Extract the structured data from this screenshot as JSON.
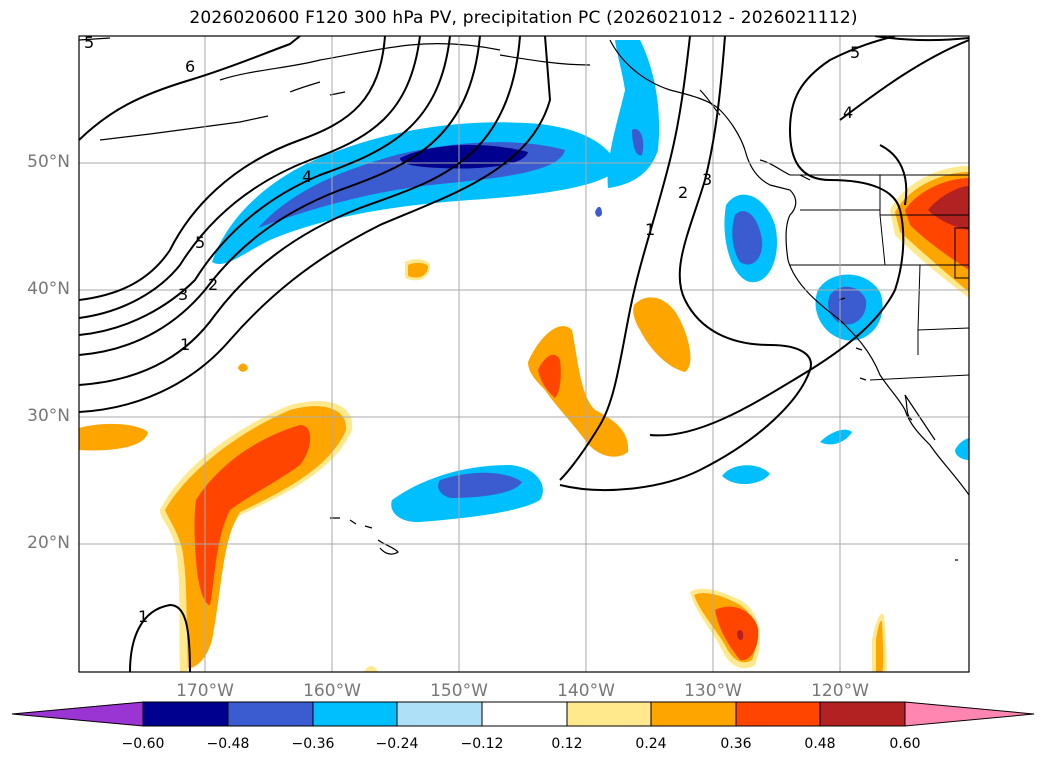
{
  "title": "2026020600 F120 300 hPa PV, precipitation PC (2026021012 - 2026021112)",
  "lat_labels": [
    "50°N",
    "40°N",
    "30°N",
    "20°N"
  ],
  "lon_labels": [
    "170°W",
    "160°W",
    "150°W",
    "140°W",
    "130°W",
    "120°W"
  ],
  "contour_labels": [
    "6",
    "5",
    "4",
    "3",
    "2",
    "1",
    "1",
    "2",
    "3",
    "4",
    "5",
    "5",
    "1"
  ],
  "colorbar": {
    "ticks": [
      "−0.60",
      "−0.48",
      "−0.36",
      "−0.24",
      "−0.12",
      "0.12",
      "0.24",
      "0.36",
      "0.48",
      "0.60"
    ],
    "colors": [
      "#9a34d2",
      "#00008e",
      "#3a5cd0",
      "#00bfff",
      "#aee0f8",
      "#ffffff",
      "#ffe98c",
      "#ffa500",
      "#ff4500",
      "#b22222",
      "#ff86b0"
    ]
  }
}
